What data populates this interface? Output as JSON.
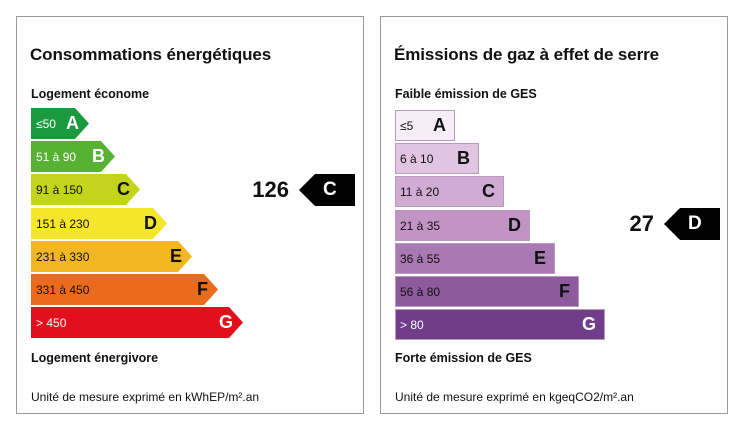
{
  "energy": {
    "title": "Consommations énergétiques",
    "top_label": "Logement économe",
    "bottom_label": "Logement énergivore",
    "unit": "Unité de mesure exprimé en kWhEP/m².an",
    "classes": [
      {
        "range": "≤50",
        "letter": "A",
        "color": "#1a9a3f",
        "text_color": "#ffffff"
      },
      {
        "range": "51 à 90",
        "letter": "B",
        "color": "#57b133",
        "text_color": "#ffffff"
      },
      {
        "range": "91 à 150",
        "letter": "C",
        "color": "#c3d51a",
        "text_color": "#111111"
      },
      {
        "range": "151 à 230",
        "letter": "D",
        "color": "#f5e62a",
        "text_color": "#111111"
      },
      {
        "range": "231 à 330",
        "letter": "E",
        "color": "#f2b622",
        "text_color": "#111111"
      },
      {
        "range": "331 à 450",
        "letter": "F",
        "color": "#ea6b1c",
        "text_color": "#111111"
      },
      {
        "range": "> 450",
        "letter": "G",
        "color": "#e2101c",
        "text_color": "#ffffff"
      }
    ],
    "marker": {
      "value": "126",
      "letter": "C"
    }
  },
  "ges": {
    "title": "Émissions de gaz à effet de serre",
    "top_label": "Faible émission de GES",
    "bottom_label": "Forte émission de GES",
    "unit": "Unité de mesure exprimé en kgeqCO2/m².an",
    "classes": [
      {
        "range": "≤5",
        "letter": "A",
        "color": "#f6edf6",
        "text_color": "#111111"
      },
      {
        "range": "6 à 10",
        "letter": "B",
        "color": "#e0c4e2",
        "text_color": "#111111"
      },
      {
        "range": "11 à 20",
        "letter": "C",
        "color": "#d0abd3",
        "text_color": "#111111"
      },
      {
        "range": "21 à 35",
        "letter": "D",
        "color": "#c194c5",
        "text_color": "#111111"
      },
      {
        "range": "36 à 55",
        "letter": "E",
        "color": "#a879b2",
        "text_color": "#111111"
      },
      {
        "range": "56 à 80",
        "letter": "F",
        "color": "#8e5a9e",
        "text_color": "#111111"
      },
      {
        "range": "> 80",
        "letter": "G",
        "color": "#6f3d89",
        "text_color": "#ffffff"
      }
    ],
    "marker": {
      "value": "27",
      "letter": "D"
    }
  }
}
